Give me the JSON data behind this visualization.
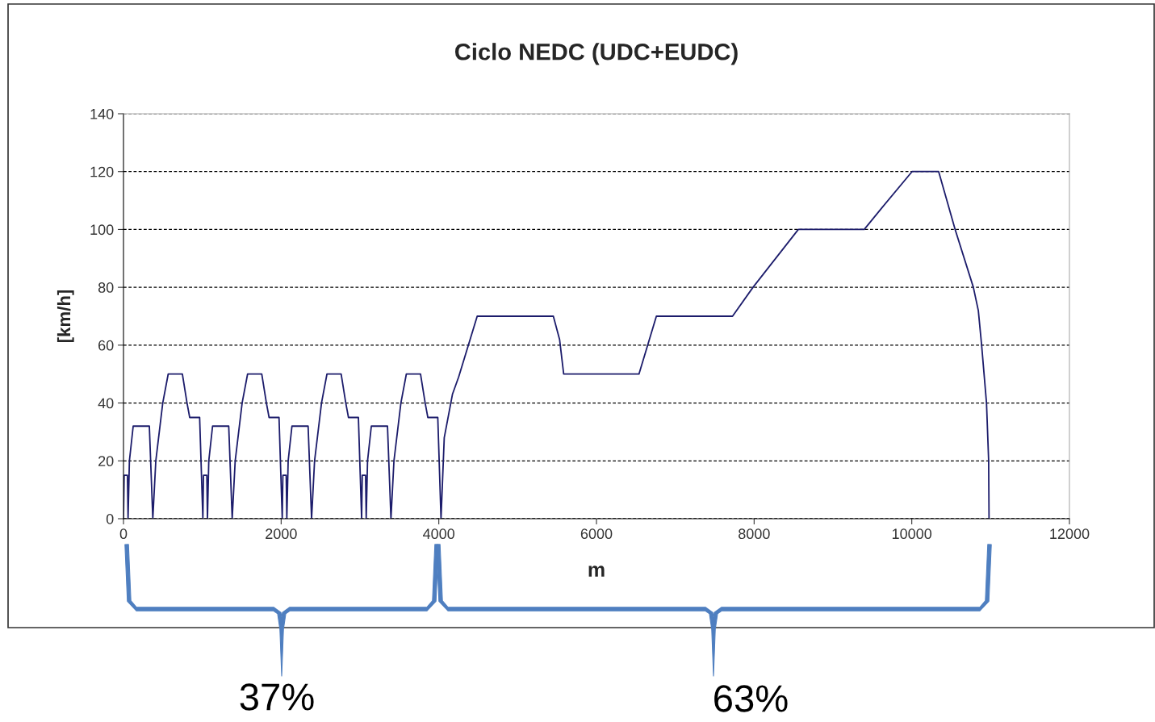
{
  "chart_data": {
    "type": "line",
    "title": "Ciclo NEDC (UDC+EUDC)",
    "xlabel": "m",
    "ylabel": "[km/h]",
    "x": [
      0,
      8,
      50,
      58,
      75,
      123,
      328,
      372,
      410,
      498,
      567,
      747,
      806,
      840,
      966,
      1007,
      1015,
      1057,
      1065,
      1082,
      1130,
      1335,
      1379,
      1417,
      1505,
      1574,
      1754,
      1813,
      1847,
      1973,
      2014,
      2022,
      2064,
      2072,
      2089,
      2137,
      2342,
      2386,
      2424,
      2512,
      2581,
      2761,
      2820,
      2854,
      2980,
      3021,
      3029,
      3071,
      3079,
      3096,
      3144,
      3349,
      3393,
      3431,
      3519,
      3588,
      3768,
      3827,
      3861,
      3987,
      4028,
      4069,
      4173,
      4252,
      4487,
      5453,
      5532,
      5584,
      6539,
      6760,
      7726,
      7986,
      8561,
      9397,
      9606,
      10003,
      10341,
      10550,
      10781,
      10844,
      10886,
      10948,
      10975,
      10980
    ],
    "series": [
      {
        "color": "#1c1c6b",
        "values": [
          0,
          15,
          15,
          0,
          20,
          32,
          32,
          0,
          20,
          40,
          50,
          50,
          40,
          35,
          35,
          0,
          15,
          15,
          0,
          20,
          32,
          32,
          0,
          20,
          40,
          50,
          50,
          40,
          35,
          35,
          0,
          15,
          15,
          0,
          20,
          32,
          32,
          0,
          20,
          40,
          50,
          50,
          40,
          35,
          35,
          0,
          15,
          15,
          0,
          20,
          32,
          32,
          0,
          20,
          40,
          50,
          50,
          40,
          35,
          35,
          0,
          28,
          43,
          49,
          70,
          70,
          62,
          50,
          50,
          70,
          70,
          80,
          100,
          100,
          107,
          120,
          120,
          100,
          80,
          72,
          60,
          40,
          20,
          0
        ]
      }
    ],
    "xlim": [
      0,
      12000
    ],
    "xticks": [
      0,
      2000,
      4000,
      6000,
      8000,
      10000,
      12000
    ],
    "ylim": [
      0,
      140
    ],
    "yticks": [
      0,
      20,
      40,
      60,
      80,
      100,
      120,
      140
    ],
    "grid": "y",
    "line_style": "solid",
    "annotations": [
      "37%",
      "63%"
    ]
  }
}
